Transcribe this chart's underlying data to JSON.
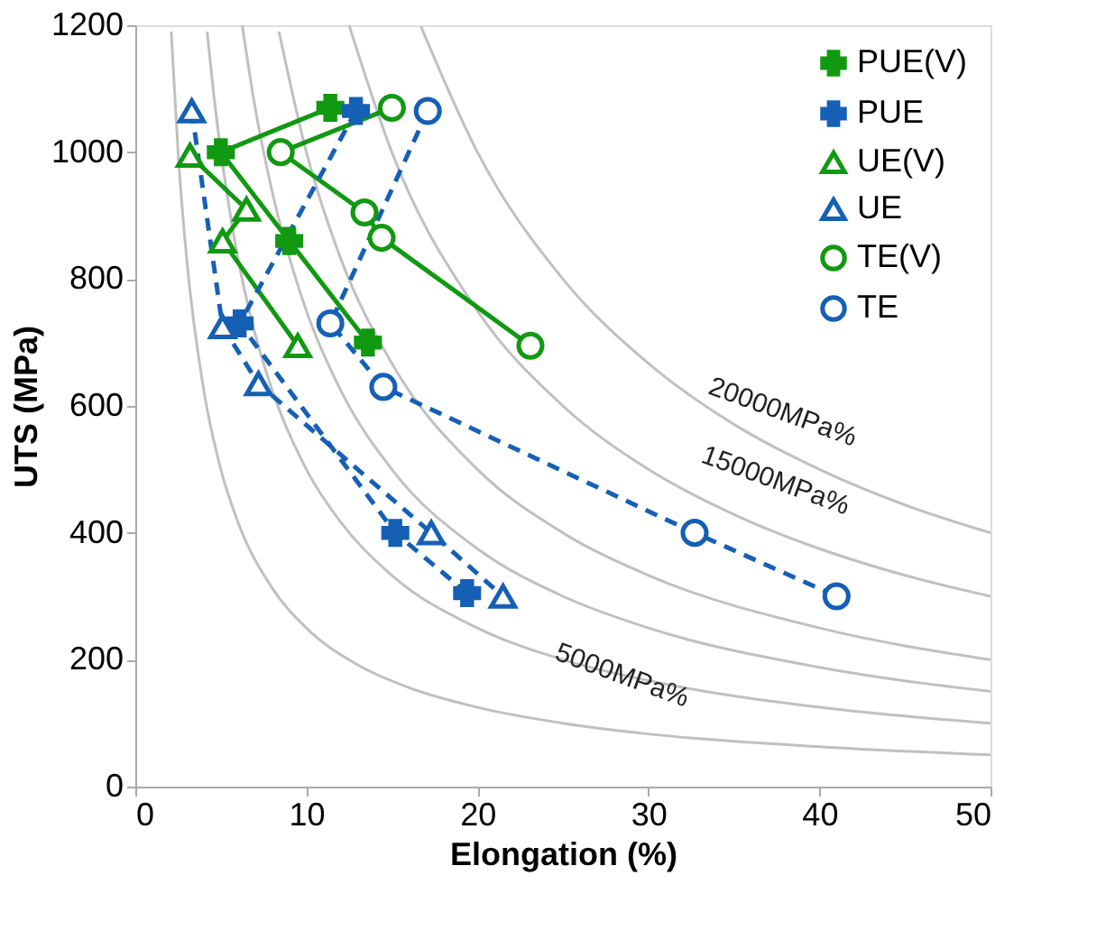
{
  "chart_data": {
    "type": "line",
    "xlabel": "Elongation (%)",
    "ylabel": "UTS (MPa)",
    "xlim": [
      0,
      50
    ],
    "xticks": [
      0,
      10,
      20,
      30,
      40,
      50
    ],
    "ylim": [
      0,
      1200
    ],
    "yticks": [
      0,
      200,
      400,
      600,
      800,
      1000,
      1200
    ],
    "grid": false,
    "legend": "top right",
    "series": [
      {
        "type": "line",
        "color": "#c0c0c0",
        "marker": "none",
        "line_style": "solid",
        "x": [
          2.1,
          2.5,
          3,
          4,
          5,
          6,
          8,
          10,
          13,
          16,
          20,
          25,
          30,
          40,
          50
        ],
        "values": [
          1190,
          1000,
          833,
          625,
          500,
          417,
          313,
          250,
          192,
          156,
          125,
          100,
          83,
          63,
          50
        ]
      },
      {
        "type": "line",
        "color": "#c0c0c0",
        "marker": "none",
        "line_style": "solid",
        "x": [
          4.2,
          4.6,
          6,
          7,
          8,
          10,
          12,
          15,
          20,
          25,
          30,
          40,
          50
        ],
        "values": [
          1190,
          1087,
          833,
          714,
          625,
          500,
          417,
          333,
          250,
          200,
          167,
          125,
          100
        ]
      },
      {
        "type": "line",
        "color": "#c0c0c0",
        "marker": "none",
        "line_style": "solid",
        "x": [
          6.25,
          7,
          8,
          10,
          12,
          15,
          20,
          25,
          30,
          40,
          50
        ],
        "values": [
          1200,
          1071,
          938,
          750,
          625,
          500,
          375,
          300,
          250,
          188,
          150
        ]
      },
      {
        "type": "line",
        "color": "#c0c0c0",
        "marker": "none",
        "line_style": "solid",
        "x": [
          8.4,
          10,
          12,
          15,
          20,
          25,
          30,
          40,
          50
        ],
        "values": [
          1190,
          1000,
          833,
          667,
          500,
          400,
          333,
          250,
          200
        ]
      },
      {
        "type": "line",
        "color": "#c0c0c0",
        "marker": "none",
        "line_style": "solid",
        "x": [
          12.5,
          15,
          20,
          25,
          30,
          35,
          40,
          45,
          50
        ],
        "values": [
          1200,
          1000,
          750,
          600,
          500,
          429,
          375,
          333,
          300
        ]
      },
      {
        "type": "line",
        "color": "#c0c0c0",
        "marker": "none",
        "line_style": "solid",
        "x": [
          16.7,
          20,
          25,
          30,
          35,
          40,
          45,
          50
        ],
        "values": [
          1198,
          1000,
          800,
          667,
          571,
          500,
          444,
          400
        ]
      },
      {
        "type": "line",
        "name": "PUE(V)",
        "color": "#119911",
        "marker": "cross",
        "line_style": "solid",
        "x": [
          11.4,
          5.0,
          9.0,
          13.6
        ],
        "values": [
          1070,
          1000,
          860,
          700
        ]
      },
      {
        "type": "line",
        "name": "PUE",
        "color": "#1560b5",
        "marker": "cross",
        "line_style": "dashed",
        "x": [
          12.9,
          6.1,
          15.2,
          19.4
        ],
        "values": [
          1065,
          730,
          400,
          305
        ]
      },
      {
        "type": "line",
        "name": "UE(V)",
        "color": "#119911",
        "marker": "triangle",
        "line_style": "solid",
        "x": [
          3.2,
          6.5,
          5.1,
          9.5
        ],
        "values": [
          995,
          910,
          860,
          695
        ]
      },
      {
        "type": "line",
        "name": "UE",
        "color": "#1560b5",
        "marker": "triangle",
        "line_style": "dashed",
        "x": [
          3.3,
          5.1,
          7.2,
          17.3,
          21.5
        ],
        "values": [
          1065,
          725,
          635,
          400,
          300
        ]
      },
      {
        "type": "line",
        "name": "TE(V)",
        "color": "#119911",
        "marker": "circle",
        "line_style": "solid",
        "x": [
          15.0,
          8.5,
          13.4,
          14.4,
          23.1
        ],
        "values": [
          1070,
          1000,
          905,
          865,
          695
        ]
      },
      {
        "type": "line",
        "name": "TE",
        "color": "#1560b5",
        "marker": "circle",
        "line_style": "dashed",
        "x": [
          17.1,
          11.4,
          14.5,
          32.7,
          41.0
        ],
        "values": [
          1065,
          730,
          630,
          400,
          300
        ]
      }
    ],
    "annotations": [
      "20000MPa%",
      "15000MPa%",
      "5000MPa%"
    ]
  }
}
